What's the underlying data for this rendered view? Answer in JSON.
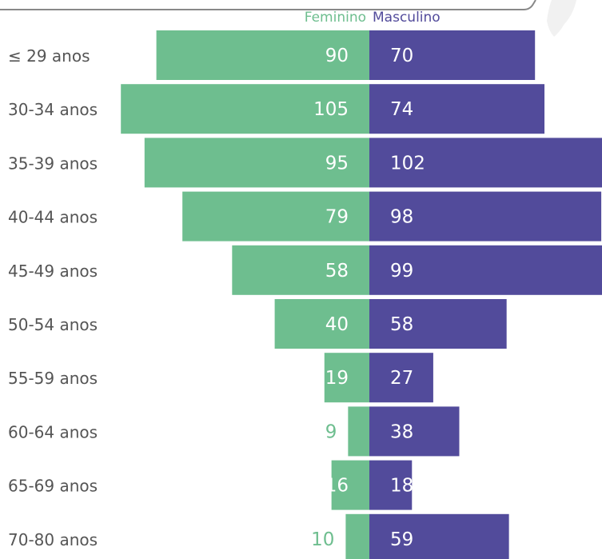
{
  "colors": {
    "feminino": "#6ebe8f",
    "masculino": "#524b9b",
    "age_label": "#555555",
    "header_line": "#888888"
  },
  "legend": {
    "feminino": "Feminino",
    "masculino": "Masculino"
  },
  "chart_data": {
    "type": "bar",
    "orientation": "horizontal",
    "layout": "population-pyramid",
    "categories": [
      "≤ 29 anos",
      "30-34 anos",
      "35-39 anos",
      "40-44 anos",
      "45-49 anos",
      "50-54 anos",
      "55-59 anos",
      "60-64 anos",
      "65-69 anos",
      "70-80 anos"
    ],
    "series": [
      {
        "name": "Feminino",
        "color": "#6ebe8f",
        "values": [
          90,
          105,
          95,
          79,
          58,
          40,
          19,
          9,
          16,
          10
        ]
      },
      {
        "name": "Masculino",
        "color": "#524b9b",
        "values": [
          70,
          74,
          102,
          98,
          99,
          58,
          27,
          38,
          18,
          59
        ]
      }
    ],
    "title": "",
    "xlabel": "",
    "ylabel": "",
    "legend_position": "top-center",
    "grid": false
  }
}
